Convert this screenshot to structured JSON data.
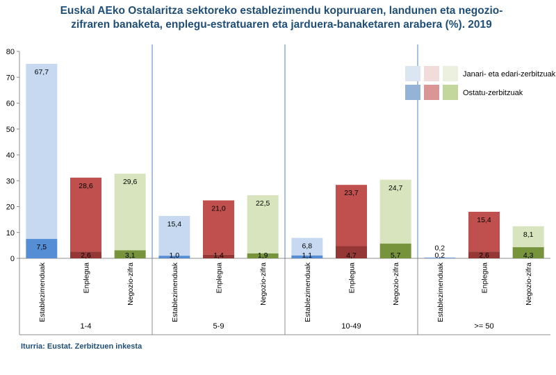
{
  "chart_data": {
    "type": "bar",
    "title_lines": [
      "Euskal AEko Ostalaritza sektoreko establezimendu kopuruaren, landunen eta negozio-",
      "zifraren banaketa, enplegu-estratuaren eta jarduera-banaketaren arabera (%). 2019"
    ],
    "y_ticks": [
      "0",
      "10",
      "20",
      "30",
      "40",
      "50",
      "60",
      "70",
      "80"
    ],
    "ylim": [
      0,
      80
    ],
    "groups": [
      "1-4",
      "5-9",
      "10-49",
      ">= 50"
    ],
    "metrics": [
      "Establezimenduak",
      "Enplegua",
      "Negozio-zifra"
    ],
    "series": [
      {
        "name": "Ostatu-zerbitzuak",
        "values": [
          [
            7.5,
            2.6,
            3.1
          ],
          [
            1.0,
            1.4,
            1.9
          ],
          [
            1.1,
            4.7,
            5.7
          ],
          [
            0.2,
            2.6,
            4.3
          ]
        ],
        "labels": [
          [
            "7,5",
            "2,6",
            "3,1"
          ],
          [
            "1,0",
            "1,4",
            "1,9"
          ],
          [
            "1,1",
            "4,7",
            "5,7"
          ],
          [
            "0,2",
            "2,6",
            "4,3"
          ]
        ]
      },
      {
        "name": "Janari- eta edari-zerbitzuak",
        "values": [
          [
            67.7,
            28.6,
            29.6
          ],
          [
            15.4,
            21.0,
            22.5
          ],
          [
            6.8,
            23.7,
            24.7
          ],
          [
            0.2,
            15.4,
            8.1
          ]
        ],
        "labels": [
          [
            "67,7",
            "28,6",
            "29,6"
          ],
          [
            "15,4",
            "21,0",
            "22,5"
          ],
          [
            "6,8",
            "23,7",
            "24,7"
          ],
          [
            "0,2",
            "15,4",
            "8,1"
          ]
        ]
      }
    ],
    "legend": {
      "entries": [
        "Janari- eta edari-zerbitzuak",
        "Ostatu-zerbitzuak"
      ],
      "placement": "top-right"
    },
    "colors": {
      "dark": [
        "#558ed5",
        "#953735",
        "#77933c"
      ],
      "light": [
        "#c6d9f1",
        "#c0504d",
        "#d7e4bd"
      ],
      "legend_light": [
        "#dce6f2",
        "#f2dcdb",
        "#ebf1de"
      ],
      "legend_dark": [
        "#95b3d7",
        "#d99694",
        "#c3d69b"
      ],
      "separator": "#4f81bd",
      "axis": "#8c8c8c"
    }
  },
  "source": "Iturria: Eustat. Zerbitzuen inkesta"
}
